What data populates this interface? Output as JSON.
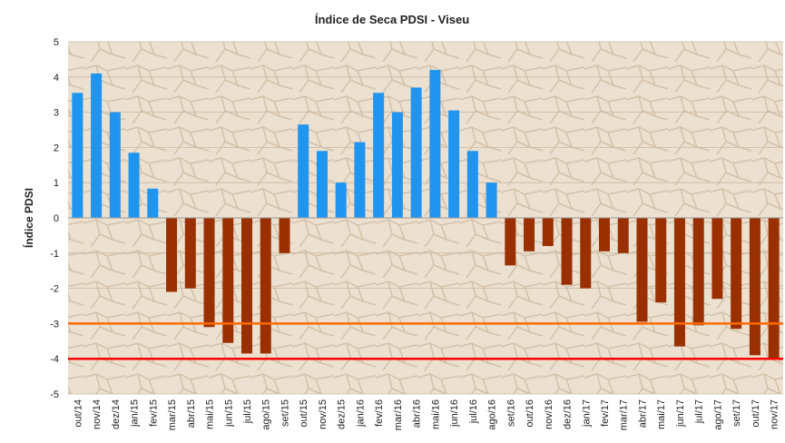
{
  "chart_data": {
    "type": "bar",
    "title": "Índice de Seca PDSI - Viseu",
    "y_label": "Índice PDSI",
    "categories": [
      "out/14",
      "nov/14",
      "dez/14",
      "jan/15",
      "fev/15",
      "mar/15",
      "abr/15",
      "mai/15",
      "jun/15",
      "jul/15",
      "ago/15",
      "set/15",
      "out/15",
      "nov/15",
      "dez/15",
      "jan/16",
      "fev/16",
      "mar/16",
      "abr/16",
      "mai/16",
      "jun/16",
      "jul/16",
      "ago/16",
      "set/16",
      "out/16",
      "nov/16",
      "dez/16",
      "jan/17",
      "fev/17",
      "mar/17",
      "abr/17",
      "mai/17",
      "jun/17",
      "jul/17",
      "ago/17",
      "set/17",
      "out/17",
      "nov/17"
    ],
    "values": [
      3.55,
      4.1,
      3.0,
      1.85,
      0.83,
      -2.1,
      -2.0,
      -3.1,
      -3.55,
      -3.85,
      -3.85,
      -1.0,
      2.65,
      1.9,
      1.0,
      2.15,
      3.55,
      3.0,
      3.7,
      4.2,
      3.05,
      1.9,
      1.0,
      -1.35,
      -0.95,
      -0.8,
      -1.9,
      -2.0,
      -0.95,
      -1.0,
      -2.95,
      -2.4,
      -3.65,
      -3.05,
      -2.3,
      -3.15,
      -3.9,
      -4.0
    ],
    "positive_color": "#1f95f0",
    "negative_color": "#9a3000",
    "ylim": [
      -5,
      5
    ],
    "yticks": [
      -5,
      -4,
      -3,
      -2,
      -1,
      0,
      1,
      2,
      3,
      4,
      5
    ],
    "grid": true,
    "reference_lines": [
      {
        "value": -3,
        "color": "#ff6a00"
      },
      {
        "value": -4,
        "color": "#ff0000"
      }
    ]
  }
}
